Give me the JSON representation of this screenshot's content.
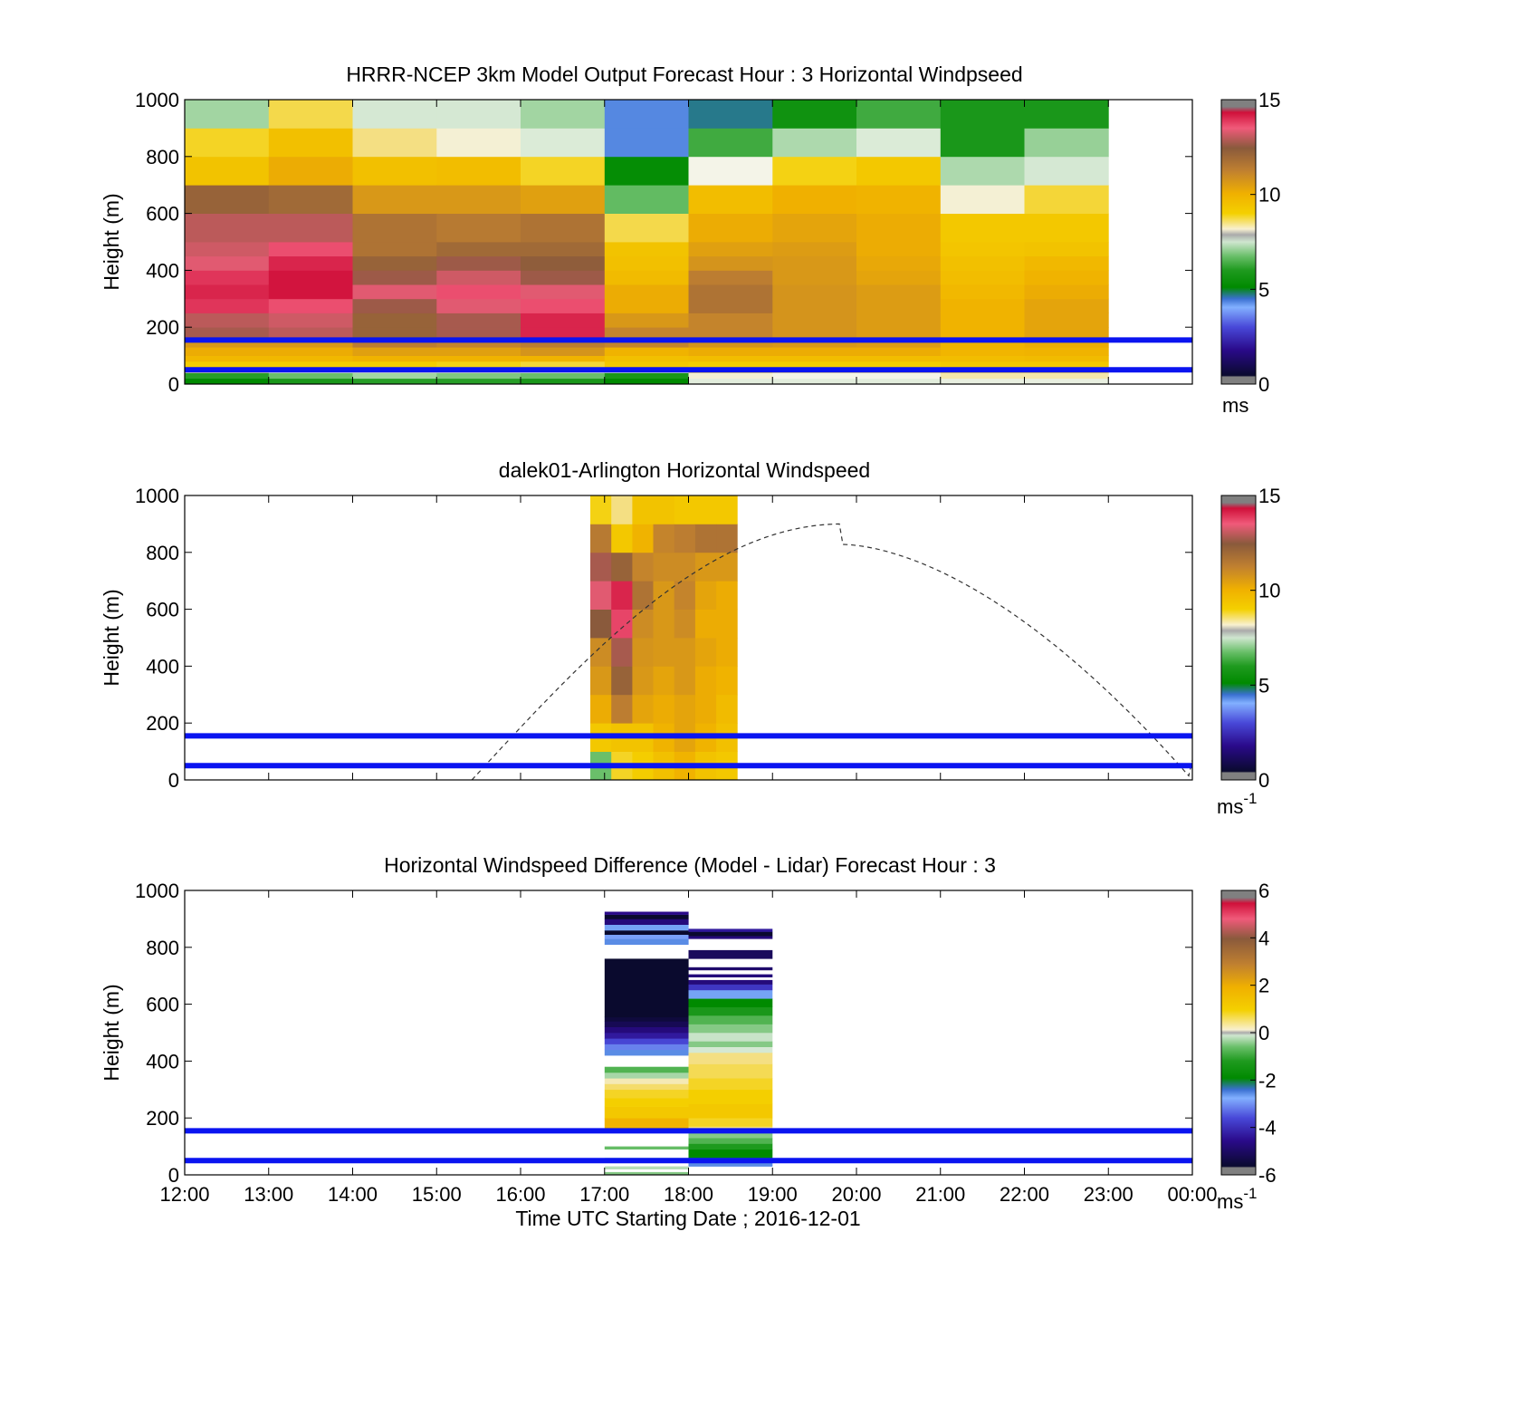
{
  "chart_data": [
    {
      "type": "heatmap",
      "title": "HRRR-NCEP 3km Model Output   Forecast Hour : 3 Horizontal Windpseed",
      "ylabel": "Height (m)",
      "ylim": [
        0,
        1000
      ],
      "yticks": [
        "0",
        "200",
        "400",
        "600",
        "800",
        "1000"
      ],
      "xlim_hours": [
        12,
        24
      ],
      "colorbar": {
        "range": [
          0,
          15
        ],
        "ticks": [
          "0",
          "5",
          "10",
          "15"
        ],
        "unit": "ms",
        "palette": "windspeed"
      },
      "hlines": [
        50,
        155
      ],
      "hline_color": "#0a14f0",
      "start_hours": [
        12,
        13,
        14,
        15,
        16,
        17,
        18,
        19,
        20,
        21,
        22
      ],
      "heights": [
        0,
        20,
        40,
        60,
        80,
        100,
        130,
        160,
        200,
        250,
        300,
        350,
        400,
        450,
        500,
        600,
        700,
        800,
        900,
        1000
      ],
      "columns": [
        [
          4.5,
          5.2,
          7.8,
          8.8,
          9.6,
          10.0,
          10.5,
          12.6,
          12.8,
          13.8,
          14.0,
          13.8,
          13.2,
          13.0,
          12.8,
          12.0,
          9.2,
          8.5,
          6.5
        ],
        [
          5.0,
          6.0,
          7.5,
          8.8,
          9.6,
          10.0,
          10.5,
          12.8,
          13.0,
          13.5,
          14.2,
          14.2,
          14.0,
          13.5,
          12.8,
          11.8,
          10.0,
          9.3,
          8.3
        ],
        [
          5.2,
          6.5,
          7.6,
          8.8,
          9.8,
          10.3,
          11.2,
          12.0,
          12.0,
          12.5,
          13.2,
          12.5,
          12.0,
          11.5,
          11.5,
          10.5,
          9.3,
          8.0,
          7.0
        ],
        [
          5.2,
          6.2,
          7.6,
          8.6,
          9.8,
          10.3,
          11.0,
          12.6,
          12.6,
          13.2,
          13.5,
          13.0,
          12.5,
          11.8,
          11.3,
          10.5,
          9.4,
          7.6,
          7.0
        ],
        [
          5.0,
          6.0,
          7.5,
          8.4,
          9.8,
          10.6,
          11.2,
          14.0,
          14.0,
          13.5,
          13.2,
          12.5,
          12.2,
          11.8,
          11.5,
          10.3,
          8.5,
          7.1,
          6.5
        ],
        [
          4.5,
          5.0,
          7.3,
          9.0,
          9.3,
          9.8,
          11.0,
          11.0,
          10.5,
          10.0,
          10.0,
          9.5,
          9.3,
          9.2,
          8.3,
          5.9,
          4.6,
          3.8,
          3.8
        ],
        [
          7.2,
          7.6,
          8.2,
          8.8,
          9.4,
          10.0,
          10.6,
          11.0,
          11.0,
          11.5,
          11.5,
          11.2,
          10.6,
          10.3,
          10.0,
          9.4,
          7.5,
          5.5,
          4.2
        ],
        [
          7.2,
          7.5,
          8.0,
          8.8,
          9.4,
          10.0,
          10.5,
          10.6,
          10.6,
          10.6,
          10.6,
          10.5,
          10.5,
          10.4,
          10.2,
          9.9,
          8.6,
          6.6,
          4.8
        ],
        [
          7.2,
          7.5,
          8.0,
          8.8,
          9.4,
          10.0,
          10.4,
          10.4,
          10.4,
          10.4,
          10.4,
          10.2,
          10.1,
          10.0,
          10.0,
          9.8,
          9.0,
          7.1,
          5.5
        ],
        [
          7.3,
          7.8,
          8.3,
          9.0,
          9.4,
          9.7,
          9.8,
          9.8,
          9.8,
          9.8,
          9.6,
          9.4,
          9.3,
          9.1,
          9.0,
          7.6,
          6.6,
          5.0,
          5.0
        ],
        [
          7.3,
          7.8,
          8.3,
          9.0,
          9.5,
          9.8,
          10.0,
          10.2,
          10.2,
          10.2,
          10.0,
          9.8,
          9.6,
          9.2,
          9.0,
          8.4,
          7.0,
          6.4,
          5.0
        ]
      ]
    },
    {
      "type": "heatmap",
      "title": "dalek01-Arlington  Horizontal Windspeed",
      "ylabel": "Height (m)",
      "ylim": [
        0,
        1000
      ],
      "yticks": [
        "0",
        "200",
        "400",
        "600",
        "800",
        "1000"
      ],
      "xlim_hours": [
        12,
        24
      ],
      "colorbar": {
        "range": [
          0,
          15
        ],
        "ticks": [
          "0",
          "5",
          "10",
          "15"
        ],
        "unit": "ms",
        "unit_exp": "-1",
        "palette": "windspeed"
      },
      "hlines": [
        50,
        155
      ],
      "hline_color": "#0a14f0",
      "sun_curve": {
        "hours": [
          15.42,
          19.83,
          24.0
        ],
        "peak_height": 900,
        "color": "#333333"
      },
      "start_hours": [
        16.83,
        17.08,
        17.33,
        17.58,
        17.83,
        18.08,
        18.33
      ],
      "width_hours": 0.25,
      "heights": [
        0,
        100,
        200,
        300,
        400,
        500,
        600,
        700,
        800,
        900,
        1000
      ],
      "columns": [
        [
          6.0,
          9.0,
          10.0,
          10.5,
          10.8,
          12.3,
          13.2,
          12.6,
          11.3,
          8.6
        ],
        [
          8.5,
          9.2,
          11.2,
          12.0,
          12.6,
          13.6,
          14.0,
          12.0,
          9.0,
          8.0
        ],
        [
          8.8,
          9.2,
          10.2,
          10.5,
          10.6,
          10.8,
          11.5,
          11.0,
          9.8,
          9.2
        ],
        [
          9.3,
          9.8,
          10.0,
          10.2,
          10.5,
          10.5,
          10.5,
          10.8,
          11.0,
          9.2
        ],
        [
          9.8,
          10.2,
          10.2,
          10.5,
          10.5,
          10.8,
          11.0,
          10.8,
          11.2,
          9.0
        ],
        [
          9.2,
          9.8,
          10.0,
          10.0,
          10.2,
          10.0,
          10.2,
          10.5,
          11.5,
          9.0
        ],
        [
          9.0,
          9.3,
          9.5,
          9.8,
          10.0,
          10.0,
          10.0,
          10.5,
          11.5,
          9.0
        ]
      ]
    },
    {
      "type": "heatmap",
      "title": "Horizontal Windspeed Difference (Model - Lidar) Forecast Hour : 3",
      "xlabel": "Time UTC  Starting Date ; 2016-12-01",
      "ylabel": "Height (m)",
      "ylim": [
        0,
        1000
      ],
      "yticks": [
        "0",
        "200",
        "400",
        "600",
        "800",
        "1000"
      ],
      "xlim_hours": [
        12,
        24
      ],
      "xticks": [
        "12:00",
        "13:00",
        "14:00",
        "15:00",
        "16:00",
        "17:00",
        "18:00",
        "19:00",
        "20:00",
        "21:00",
        "22:00",
        "23:00",
        "00:00"
      ],
      "colorbar": {
        "range": [
          -6,
          6
        ],
        "ticks": [
          "-6",
          "-4",
          "-2",
          "0",
          "2",
          "4",
          "6"
        ],
        "unit": "ms",
        "unit_exp": "-1",
        "palette": "difference"
      },
      "hlines": [
        50,
        155
      ],
      "hline_color": "#0a14f0",
      "columns": [
        {
          "start_hour": 17,
          "width_hours": 1,
          "segments": [
            [
              0,
              10,
              -0.8
            ],
            [
              20,
              30,
              -0.5
            ],
            [
              50,
              60,
              -0.5
            ],
            [
              90,
              100,
              -1.0
            ],
            [
              160,
              200,
              1.8
            ],
            [
              200,
              240,
              1.2
            ],
            [
              240,
              270,
              1.0
            ],
            [
              270,
              300,
              0.8
            ],
            [
              300,
              320,
              0.5
            ],
            [
              320,
              340,
              0.2
            ],
            [
              340,
              360,
              -0.6
            ],
            [
              360,
              380,
              -1.2
            ],
            [
              420,
              440,
              -3.0
            ],
            [
              440,
              460,
              -3.6
            ],
            [
              460,
              480,
              -4.0
            ],
            [
              480,
              500,
              -4.6
            ],
            [
              500,
              520,
              -5.0
            ],
            [
              520,
              540,
              -5.5
            ],
            [
              540,
              555,
              -5.8
            ],
            [
              555,
              760,
              -6.0
            ],
            [
              810,
              830,
              -3.0
            ],
            [
              830,
              845,
              -3.4
            ],
            [
              845,
              860,
              -6.0
            ],
            [
              860,
              880,
              -3.2
            ],
            [
              880,
              900,
              -5.0
            ],
            [
              900,
              915,
              -6.0
            ],
            [
              915,
              925,
              -4.8
            ]
          ]
        },
        {
          "start_hour": 18,
          "width_hours": 1,
          "segments": [
            [
              30,
              60,
              -3.0
            ],
            [
              60,
              90,
              -2.4
            ],
            [
              90,
              110,
              -1.7
            ],
            [
              110,
              130,
              -1.2
            ],
            [
              130,
              150,
              -0.8
            ],
            [
              150,
              170,
              0.4
            ],
            [
              170,
              200,
              0.8
            ],
            [
              200,
              250,
              1.2
            ],
            [
              250,
              300,
              1.0
            ],
            [
              300,
              340,
              0.8
            ],
            [
              340,
              390,
              0.6
            ],
            [
              390,
              430,
              0.4
            ],
            [
              430,
              450,
              -0.3
            ],
            [
              450,
              470,
              -0.8
            ],
            [
              470,
              500,
              -0.4
            ],
            [
              500,
              530,
              -0.8
            ],
            [
              530,
              560,
              -1.2
            ],
            [
              560,
              590,
              -1.8
            ],
            [
              590,
              620,
              -2.4
            ],
            [
              620,
              650,
              -3.2
            ],
            [
              650,
              670,
              -4.2
            ],
            [
              670,
              685,
              -5.0
            ],
            [
              695,
              705,
              -5.0
            ],
            [
              720,
              730,
              -5.2
            ],
            [
              760,
              790,
              -5.4
            ],
            [
              830,
              840,
              -5.0
            ],
            [
              840,
              855,
              -6.0
            ],
            [
              855,
              865,
              -4.6
            ]
          ]
        }
      ]
    }
  ]
}
